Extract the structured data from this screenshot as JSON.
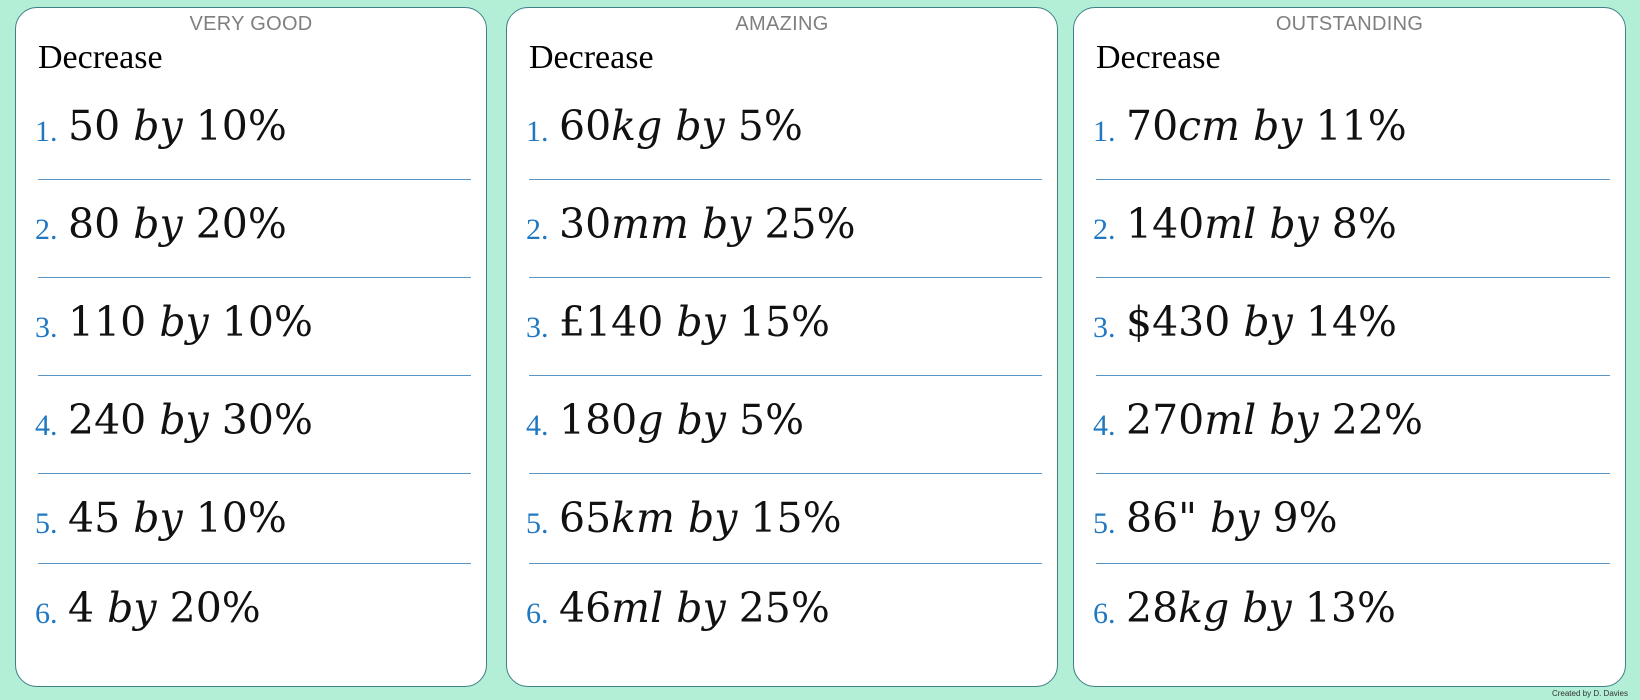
{
  "cards": [
    {
      "level": "VERY GOOD",
      "heading": "Decrease",
      "questions": [
        {
          "num": "1.",
          "amount": "50",
          "unit": "",
          "join": "by",
          "percent": "10%"
        },
        {
          "num": "2.",
          "amount": "80",
          "unit": "",
          "join": "by",
          "percent": "20%"
        },
        {
          "num": "3.",
          "amount": "110",
          "unit": "",
          "join": "by",
          "percent": "10%"
        },
        {
          "num": "4.",
          "amount": "240",
          "unit": "",
          "join": "by",
          "percent": "30%"
        },
        {
          "num": "5.",
          "amount": "45",
          "unit": "",
          "join": "by",
          "percent": "10%"
        },
        {
          "num": "6.",
          "amount": "4",
          "unit": "",
          "join": "by",
          "percent": "20%"
        }
      ]
    },
    {
      "level": "AMAZING",
      "heading": "Decrease",
      "questions": [
        {
          "num": "1.",
          "amount": "60",
          "unit": "kg",
          "join": "by",
          "percent": "5%"
        },
        {
          "num": "2.",
          "amount": "30",
          "unit": "mm",
          "join": "by",
          "percent": "25%"
        },
        {
          "num": "3.",
          "amount": "£140",
          "unit": "",
          "join": "by",
          "percent": "15%"
        },
        {
          "num": "4.",
          "amount": "180",
          "unit": "g",
          "join": "by",
          "percent": "5%"
        },
        {
          "num": "5.",
          "amount": "65",
          "unit": "km",
          "join": "by",
          "percent": "15%"
        },
        {
          "num": "6.",
          "amount": "46",
          "unit": "ml",
          "join": "by",
          "percent": "25%"
        }
      ]
    },
    {
      "level": "OUTSTANDING",
      "heading": "Decrease",
      "questions": [
        {
          "num": "1.",
          "amount": "70",
          "unit": "cm",
          "join": "by",
          "percent": "11%"
        },
        {
          "num": "2.",
          "amount": "140",
          "unit": "ml",
          "join": "by",
          "percent": "8%"
        },
        {
          "num": "3.",
          "amount": "$430",
          "unit": "",
          "join": "by",
          "percent": "14%"
        },
        {
          "num": "4.",
          "amount": "270",
          "unit": "ml",
          "join": "by",
          "percent": "22%"
        },
        {
          "num": "5.",
          "amount": "86\"",
          "unit": "",
          "join": "by",
          "percent": "9%"
        },
        {
          "num": "6.",
          "amount": "28",
          "unit": "kg",
          "join": "by",
          "percent": "13%"
        }
      ]
    }
  ],
  "credit": "Created by D. Davies"
}
